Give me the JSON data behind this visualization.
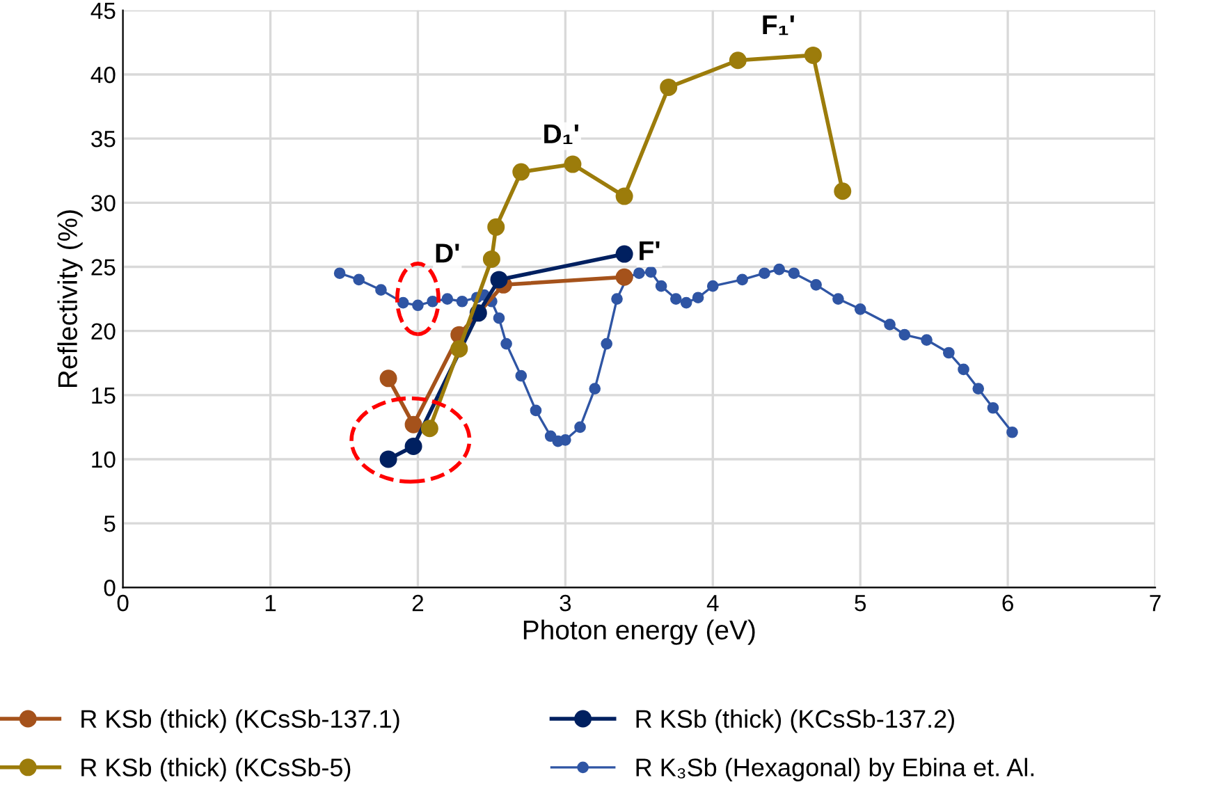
{
  "chart_data": {
    "type": "line",
    "xlabel": "Photon energy (eV)",
    "ylabel": "Reflectivity (%)",
    "xlim": [
      0,
      7
    ],
    "xticks": [
      0,
      1,
      2,
      3,
      4,
      5,
      6,
      7
    ],
    "ylim": [
      0,
      45
    ],
    "yticks": [
      0,
      5,
      10,
      15,
      20,
      25,
      30,
      35,
      40,
      45
    ],
    "grid": true,
    "legend": "bottom",
    "marker": "circle",
    "line_style": "solid",
    "annotations": [
      {
        "text": "D'",
        "x": 2.55,
        "y": 24
      },
      {
        "text": "D₁'",
        "x": 3.05,
        "y": 33
      },
      {
        "text": "F₁'",
        "x": 4.68,
        "y": 41.5
      },
      {
        "text": "F'",
        "x": 3.4,
        "y": 26
      }
    ],
    "series": [
      {
        "name": "R KSb (thick) (KCsSb-137.1)",
        "color": "#a5521b",
        "x": [
          1.8,
          1.97,
          2.28,
          2.58,
          3.4
        ],
        "values": [
          16.3,
          12.7,
          19.7,
          23.6,
          24.2
        ]
      },
      {
        "name": "R KSb (thick) (KCsSb-137.2)",
        "color": "#002060",
        "x": [
          1.8,
          1.97,
          2.41,
          2.55,
          3.4
        ],
        "values": [
          10,
          11,
          21.4,
          24,
          26
        ]
      },
      {
        "name": "R KSb (thick) (KCsSb-5)",
        "color": "#9c7c0b",
        "x": [
          2.08,
          2.28,
          2.5,
          2.53,
          2.7,
          3.05,
          3.4,
          3.7,
          4.17,
          4.68,
          4.88
        ],
        "values": [
          12.4,
          18.6,
          25.6,
          28.1,
          32.4,
          33,
          30.5,
          39,
          41.1,
          41.5,
          30.9
        ]
      },
      {
        "name": "R K₃Sb (Hexagonal) by Ebina et. Al.",
        "color": "#2f55a4",
        "x": [
          1.47,
          1.6,
          1.75,
          1.9,
          2.0,
          2.1,
          2.2,
          2.3,
          2.4,
          2.45,
          2.5,
          2.55,
          2.6,
          2.7,
          2.8,
          2.9,
          2.95,
          3.0,
          3.1,
          3.2,
          3.28,
          3.35,
          3.42,
          3.5,
          3.58,
          3.65,
          3.75,
          3.82,
          3.9,
          4.0,
          4.2,
          4.35,
          4.45,
          4.55,
          4.7,
          4.85,
          5.0,
          5.2,
          5.3,
          5.45,
          5.6,
          5.7,
          5.8,
          5.9,
          6.03
        ],
        "values": [
          24.5,
          24,
          23.2,
          22.2,
          22,
          22.3,
          22.5,
          22.3,
          22.6,
          22.8,
          22.3,
          21,
          19,
          16.5,
          13.8,
          11.8,
          11.4,
          11.5,
          12.5,
          15.5,
          19,
          22.5,
          24.2,
          24.5,
          24.6,
          23.5,
          22.5,
          22.2,
          22.6,
          23.5,
          24,
          24.5,
          24.8,
          24.5,
          23.6,
          22.5,
          21.7,
          20.5,
          19.7,
          19.3,
          18.3,
          17,
          15.5,
          14,
          12.1
        ]
      }
    ]
  }
}
